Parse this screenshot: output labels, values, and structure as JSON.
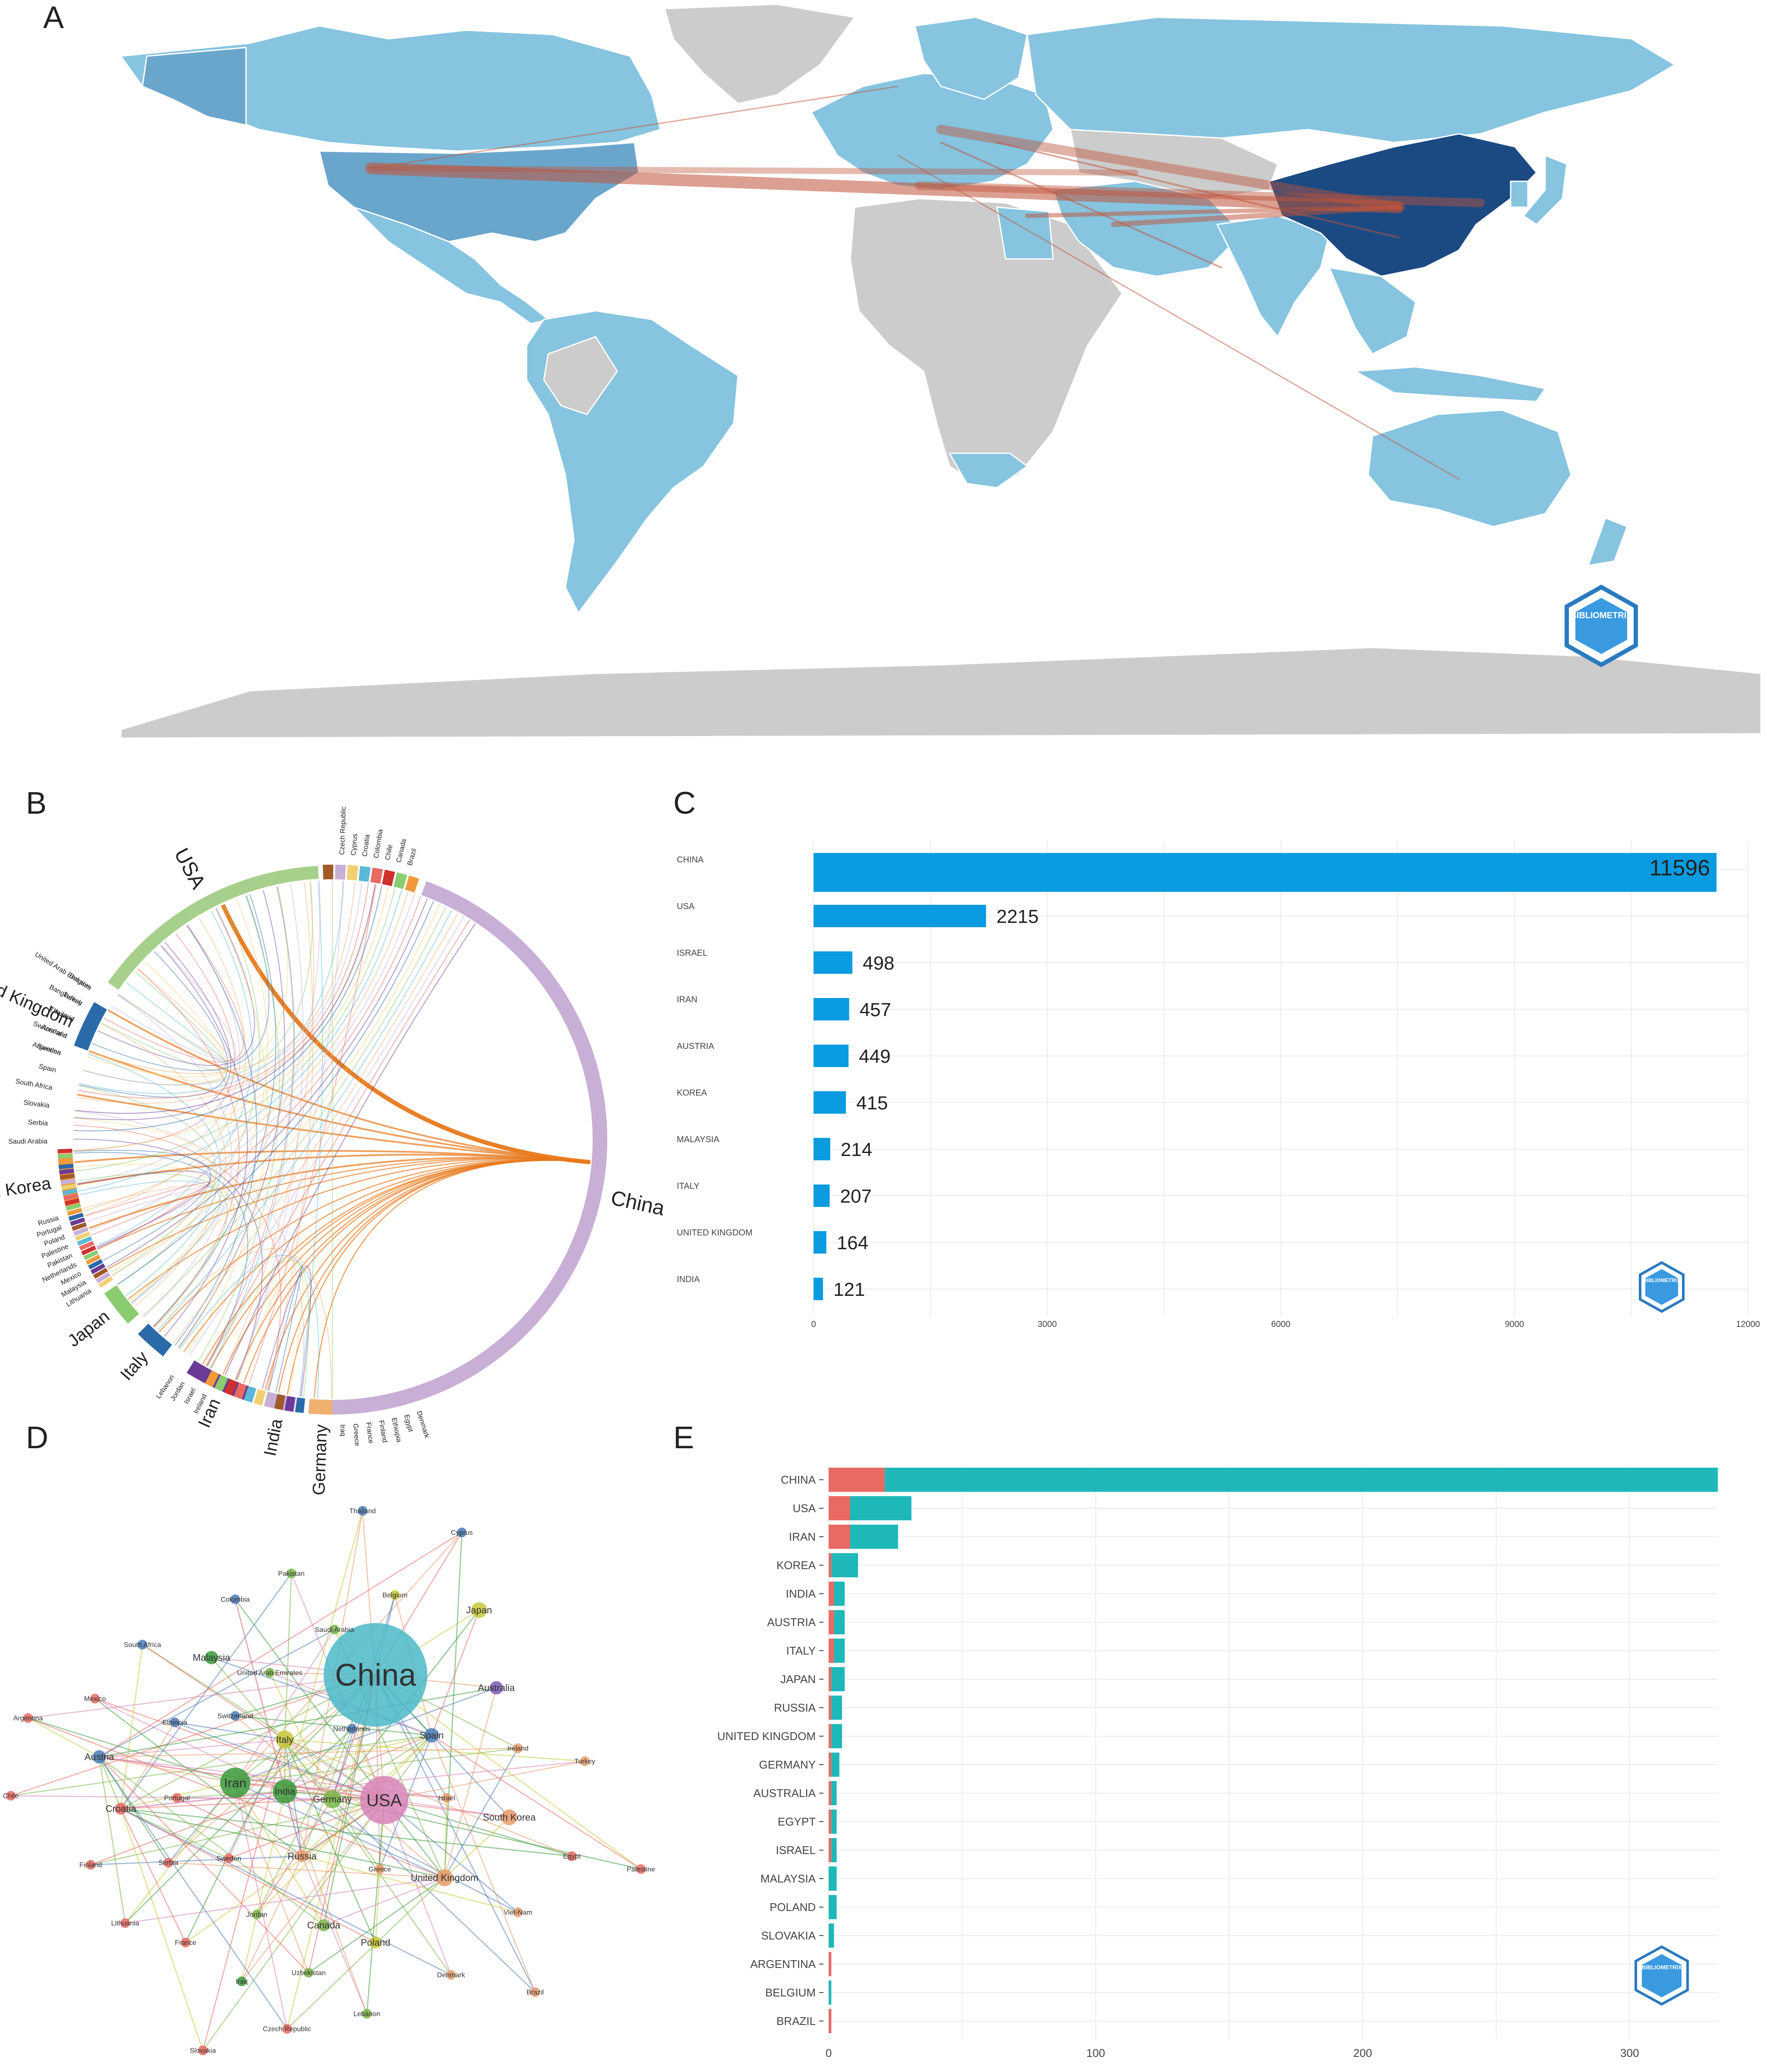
{
  "panels": {
    "a": "A",
    "b": "B",
    "c": "C",
    "d": "D",
    "e": "E"
  },
  "colors": {
    "ocean_land_none": "#cccccc",
    "scale_low": "#86c4e0",
    "scale_mid": "#6aa6cc",
    "scale_high": "#1b4a82",
    "link": "#c0543a",
    "bar_c": "#0a9be0",
    "bar_e_scp": "#1fb8b8",
    "bar_e_mcp": "#e86a62",
    "china_chord": "#c8afd6",
    "usa_chord": "#a8d08d"
  },
  "map_panel": {
    "logo_text": "BIBLIOMETRIX",
    "countries_dark": [
      "China"
    ],
    "countries_mid": [
      "USA"
    ],
    "collaboration_links_from": [
      "China",
      "USA",
      "United Kingdom",
      "Italy",
      "Germany",
      "Iran",
      "Israel",
      "India",
      "Australia"
    ]
  },
  "chord_panel": {
    "labels": [
      {
        "name": "USA",
        "size": "large"
      },
      {
        "name": "United Kingdom",
        "size": "large"
      },
      {
        "name": "South Korea",
        "size": "large"
      },
      {
        "name": "Japan",
        "size": "large"
      },
      {
        "name": "Italy",
        "size": "large"
      },
      {
        "name": "Iran",
        "size": "large"
      },
      {
        "name": "India",
        "size": "large"
      },
      {
        "name": "Germany",
        "size": "large"
      },
      {
        "name": "China",
        "size": "large"
      },
      {
        "name": "United Arab Emirates",
        "size": "small"
      },
      {
        "name": "Turkey",
        "size": "small"
      },
      {
        "name": "Thailand",
        "size": "small"
      },
      {
        "name": "Switzerland",
        "size": "small"
      },
      {
        "name": "Sweden",
        "size": "small"
      },
      {
        "name": "Spain",
        "size": "small"
      },
      {
        "name": "South Africa",
        "size": "small"
      },
      {
        "name": "Slovakia",
        "size": "small"
      },
      {
        "name": "Serbia",
        "size": "small"
      },
      {
        "name": "Saudi Arabia",
        "size": "small"
      },
      {
        "name": "Russia",
        "size": "small"
      },
      {
        "name": "Portugal",
        "size": "small"
      },
      {
        "name": "Poland",
        "size": "small"
      },
      {
        "name": "Palestine",
        "size": "small"
      },
      {
        "name": "Pakistan",
        "size": "small"
      },
      {
        "name": "Netherlands",
        "size": "small"
      },
      {
        "name": "Mexico",
        "size": "small"
      },
      {
        "name": "Malaysia",
        "size": "small"
      },
      {
        "name": "Lithuania",
        "size": "small"
      },
      {
        "name": "Lebanon",
        "size": "small"
      },
      {
        "name": "Jordan",
        "size": "small"
      },
      {
        "name": "Israel",
        "size": "small"
      },
      {
        "name": "Ireland",
        "size": "small"
      },
      {
        "name": "Iraq",
        "size": "small"
      },
      {
        "name": "Greece",
        "size": "small"
      },
      {
        "name": "France",
        "size": "small"
      },
      {
        "name": "Finland",
        "size": "small"
      },
      {
        "name": "Ethiopia",
        "size": "small"
      },
      {
        "name": "Egypt",
        "size": "small"
      },
      {
        "name": "Denmark",
        "size": "small"
      },
      {
        "name": "Czech Republic",
        "size": "small"
      },
      {
        "name": "Cyprus",
        "size": "small"
      },
      {
        "name": "Croatia",
        "size": "small"
      },
      {
        "name": "Colombia",
        "size": "small"
      },
      {
        "name": "Chile",
        "size": "small"
      },
      {
        "name": "Canada",
        "size": "small"
      },
      {
        "name": "Brazil",
        "size": "small"
      },
      {
        "name": "Belgium",
        "size": "small"
      },
      {
        "name": "Bangladesh",
        "size": "small"
      },
      {
        "name": "Austria",
        "size": "small"
      },
      {
        "name": "Australia",
        "size": "small"
      },
      {
        "name": "Argentina",
        "size": "small"
      }
    ]
  },
  "network_panel": {
    "nodes": [
      {
        "name": "China",
        "weight": 10,
        "color": "#4bb8c8"
      },
      {
        "name": "USA",
        "weight": 4,
        "color": "#d884b8"
      },
      {
        "name": "Iran",
        "weight": 2.5,
        "color": "#3a9a3a"
      },
      {
        "name": "India",
        "weight": 2,
        "color": "#3a9a3a"
      },
      {
        "name": "Germany",
        "weight": 1.5,
        "color": "#7ab648"
      },
      {
        "name": "Italy",
        "weight": 1.5,
        "color": "#c8c83a"
      },
      {
        "name": "South Korea",
        "weight": 1.3,
        "color": "#e89a6a"
      },
      {
        "name": "United Kingdom",
        "weight": 1.4,
        "color": "#e89a6a"
      },
      {
        "name": "Japan",
        "weight": 1.3,
        "color": "#c8c83a"
      },
      {
        "name": "Spain",
        "weight": 1.2,
        "color": "#4a7ab8"
      },
      {
        "name": "Australia",
        "weight": 1.1,
        "color": "#7a5ab8"
      },
      {
        "name": "Austria",
        "weight": 1.1,
        "color": "#4a7ab8"
      },
      {
        "name": "Malaysia",
        "weight": 1.1,
        "color": "#3a9a3a"
      },
      {
        "name": "Russia",
        "weight": 1,
        "color": "#e89a6a"
      },
      {
        "name": "Canada",
        "weight": 1,
        "color": "#7ab648"
      },
      {
        "name": "Poland",
        "weight": 1,
        "color": "#c8c83a"
      },
      {
        "name": "Croatia",
        "weight": 1,
        "color": "#e86a62"
      },
      {
        "name": "Thailand",
        "weight": 0.8,
        "color": "#4a7ab8"
      },
      {
        "name": "Cyprus",
        "weight": 0.8,
        "color": "#4a7ab8"
      },
      {
        "name": "Pakistan",
        "weight": 0.8,
        "color": "#7ab648"
      },
      {
        "name": "Belgium",
        "weight": 0.8,
        "color": "#c8c83a"
      },
      {
        "name": "Colombia",
        "weight": 0.8,
        "color": "#4a7ab8"
      },
      {
        "name": "Saudi Arabia",
        "weight": 0.8,
        "color": "#7ab648"
      },
      {
        "name": "South Africa",
        "weight": 0.8,
        "color": "#4a7ab8"
      },
      {
        "name": "United Arab Emirates",
        "weight": 0.8,
        "color": "#7ab648"
      },
      {
        "name": "Mexico",
        "weight": 0.8,
        "color": "#e86a62"
      },
      {
        "name": "Argentina",
        "weight": 0.8,
        "color": "#e86a62"
      },
      {
        "name": "Ethiopia",
        "weight": 0.8,
        "color": "#4a7ab8"
      },
      {
        "name": "Switzerland",
        "weight": 0.8,
        "color": "#4a7ab8"
      },
      {
        "name": "Netherlands",
        "weight": 0.8,
        "color": "#4a7ab8"
      },
      {
        "name": "Ireland",
        "weight": 0.8,
        "color": "#e89a6a"
      },
      {
        "name": "Turkey",
        "weight": 0.8,
        "color": "#e89a6a"
      },
      {
        "name": "Chile",
        "weight": 0.8,
        "color": "#e86a62"
      },
      {
        "name": "Portugal",
        "weight": 0.8,
        "color": "#e86a62"
      },
      {
        "name": "Israel",
        "weight": 0.8,
        "color": "#e89a6a"
      },
      {
        "name": "Egypt",
        "weight": 0.8,
        "color": "#e86a62"
      },
      {
        "name": "Palestine",
        "weight": 0.8,
        "color": "#e86a62"
      },
      {
        "name": "Finland",
        "weight": 0.8,
        "color": "#e86a62"
      },
      {
        "name": "Serbia",
        "weight": 0.8,
        "color": "#e86a62"
      },
      {
        "name": "Sweden",
        "weight": 0.8,
        "color": "#e86a62"
      },
      {
        "name": "Greece",
        "weight": 0.8,
        "color": "#e89a6a"
      },
      {
        "name": "Viet-Nam",
        "weight": 0.8,
        "color": "#e89a6a"
      },
      {
        "name": "Lithuania",
        "weight": 0.8,
        "color": "#e86a62"
      },
      {
        "name": "France",
        "weight": 0.8,
        "color": "#e86a62"
      },
      {
        "name": "Jordan",
        "weight": 0.8,
        "color": "#7ab648"
      },
      {
        "name": "Iraq",
        "weight": 0.8,
        "color": "#3a9a3a"
      },
      {
        "name": "Uzbekistan",
        "weight": 0.8,
        "color": "#7ab648"
      },
      {
        "name": "Denmark",
        "weight": 0.8,
        "color": "#e89a6a"
      },
      {
        "name": "Brazil",
        "weight": 0.8,
        "color": "#e89a6a"
      },
      {
        "name": "Lebanon",
        "weight": 0.8,
        "color": "#7ab648"
      },
      {
        "name": "Czech Republic",
        "weight": 0.8,
        "color": "#e86a62"
      },
      {
        "name": "Slovakia",
        "weight": 0.8,
        "color": "#e86a62"
      }
    ]
  },
  "chart_data": [
    {
      "panel": "C",
      "type": "bar",
      "orientation": "horizontal",
      "categories": [
        "CHINA",
        "USA",
        "ISRAEL",
        "IRAN",
        "AUSTRIA",
        "KOREA",
        "MALAYSIA",
        "ITALY",
        "UNITED KINGDOM",
        "INDIA"
      ],
      "values": [
        11596,
        2215,
        498,
        457,
        449,
        415,
        214,
        207,
        164,
        121
      ],
      "data_labels": [
        "11596",
        "2215",
        "498",
        "457",
        "449",
        "415",
        "214",
        "207",
        "164",
        "121"
      ],
      "xticks": [
        "0",
        "3000",
        "6000",
        "9000",
        "12000"
      ],
      "xlim": [
        0,
        12000
      ],
      "grid": true,
      "logo_text": "BIBLIOMETRIX"
    },
    {
      "panel": "E",
      "type": "bar",
      "orientation": "horizontal",
      "stacked": true,
      "categories": [
        "CHINA",
        "USA",
        "IRAN",
        "KOREA",
        "INDIA",
        "AUSTRIA",
        "ITALY",
        "JAPAN",
        "RUSSIA",
        "UNITED KINGDOM",
        "GERMANY",
        "AUSTRALIA",
        "EGYPT",
        "ISRAEL",
        "MALAYSIA",
        "POLAND",
        "SLOVAKIA",
        "ARGENTINA",
        "BELGIUM",
        "BRAZIL"
      ],
      "series": [
        {
          "key": "mcp",
          "values": [
            21,
            8,
            8,
            1,
            2,
            2,
            2,
            1,
            1,
            1,
            1,
            1,
            1,
            1,
            0,
            0,
            0,
            1,
            0,
            1
          ]
        },
        {
          "key": "scp",
          "values": [
            312,
            23,
            18,
            10,
            4,
            4,
            4,
            5,
            4,
            4,
            3,
            2,
            2,
            2,
            3,
            3,
            2,
            0,
            1,
            0
          ]
        }
      ],
      "xticks": [
        "0",
        "100",
        "200",
        "300"
      ],
      "xlim": [
        0,
        333
      ],
      "grid": true,
      "logo_text": "BIBLIOMETRIX"
    }
  ]
}
